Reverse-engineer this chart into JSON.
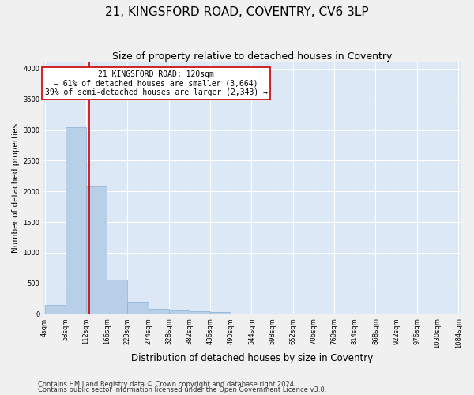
{
  "title1": "21, KINGSFORD ROAD, COVENTRY, CV6 3LP",
  "title2": "Size of property relative to detached houses in Coventry",
  "xlabel": "Distribution of detached houses by size in Coventry",
  "ylabel": "Number of detached properties",
  "footer1": "Contains HM Land Registry data © Crown copyright and database right 2024.",
  "footer2": "Contains public sector information licensed under the Open Government Licence v3.0.",
  "annotation_title": "21 KINGSFORD ROAD: 120sqm",
  "annotation_line1": "← 61% of detached houses are smaller (3,664)",
  "annotation_line2": "39% of semi-detached houses are larger (2,343) →",
  "bar_edges": [
    4,
    58,
    112,
    166,
    220,
    274,
    328,
    382,
    436,
    490,
    544,
    598,
    652,
    706,
    760,
    814,
    868,
    922,
    976,
    1030,
    1084
  ],
  "bar_heights": [
    150,
    3050,
    2075,
    560,
    195,
    80,
    60,
    40,
    35,
    10,
    5,
    3,
    2,
    1,
    1,
    1,
    0,
    0,
    1,
    0,
    0
  ],
  "bar_color": "#b8cfe8",
  "bar_edge_color": "#8aafd4",
  "property_size": 120,
  "vline_color": "#cc0000",
  "background_color": "#dce8f5",
  "grid_color": "#ffffff",
  "fig_background": "#f0f0f0",
  "ylim": [
    0,
    4100
  ],
  "yticks": [
    0,
    500,
    1000,
    1500,
    2000,
    2500,
    3000,
    3500,
    4000
  ],
  "annotation_box_color": "#ffffff",
  "annotation_box_edge": "#cc0000",
  "title1_fontsize": 11,
  "title2_fontsize": 9,
  "ylabel_fontsize": 7.5,
  "xlabel_fontsize": 8.5,
  "tick_fontsize": 6,
  "footer_fontsize": 6,
  "annotation_fontsize": 7
}
